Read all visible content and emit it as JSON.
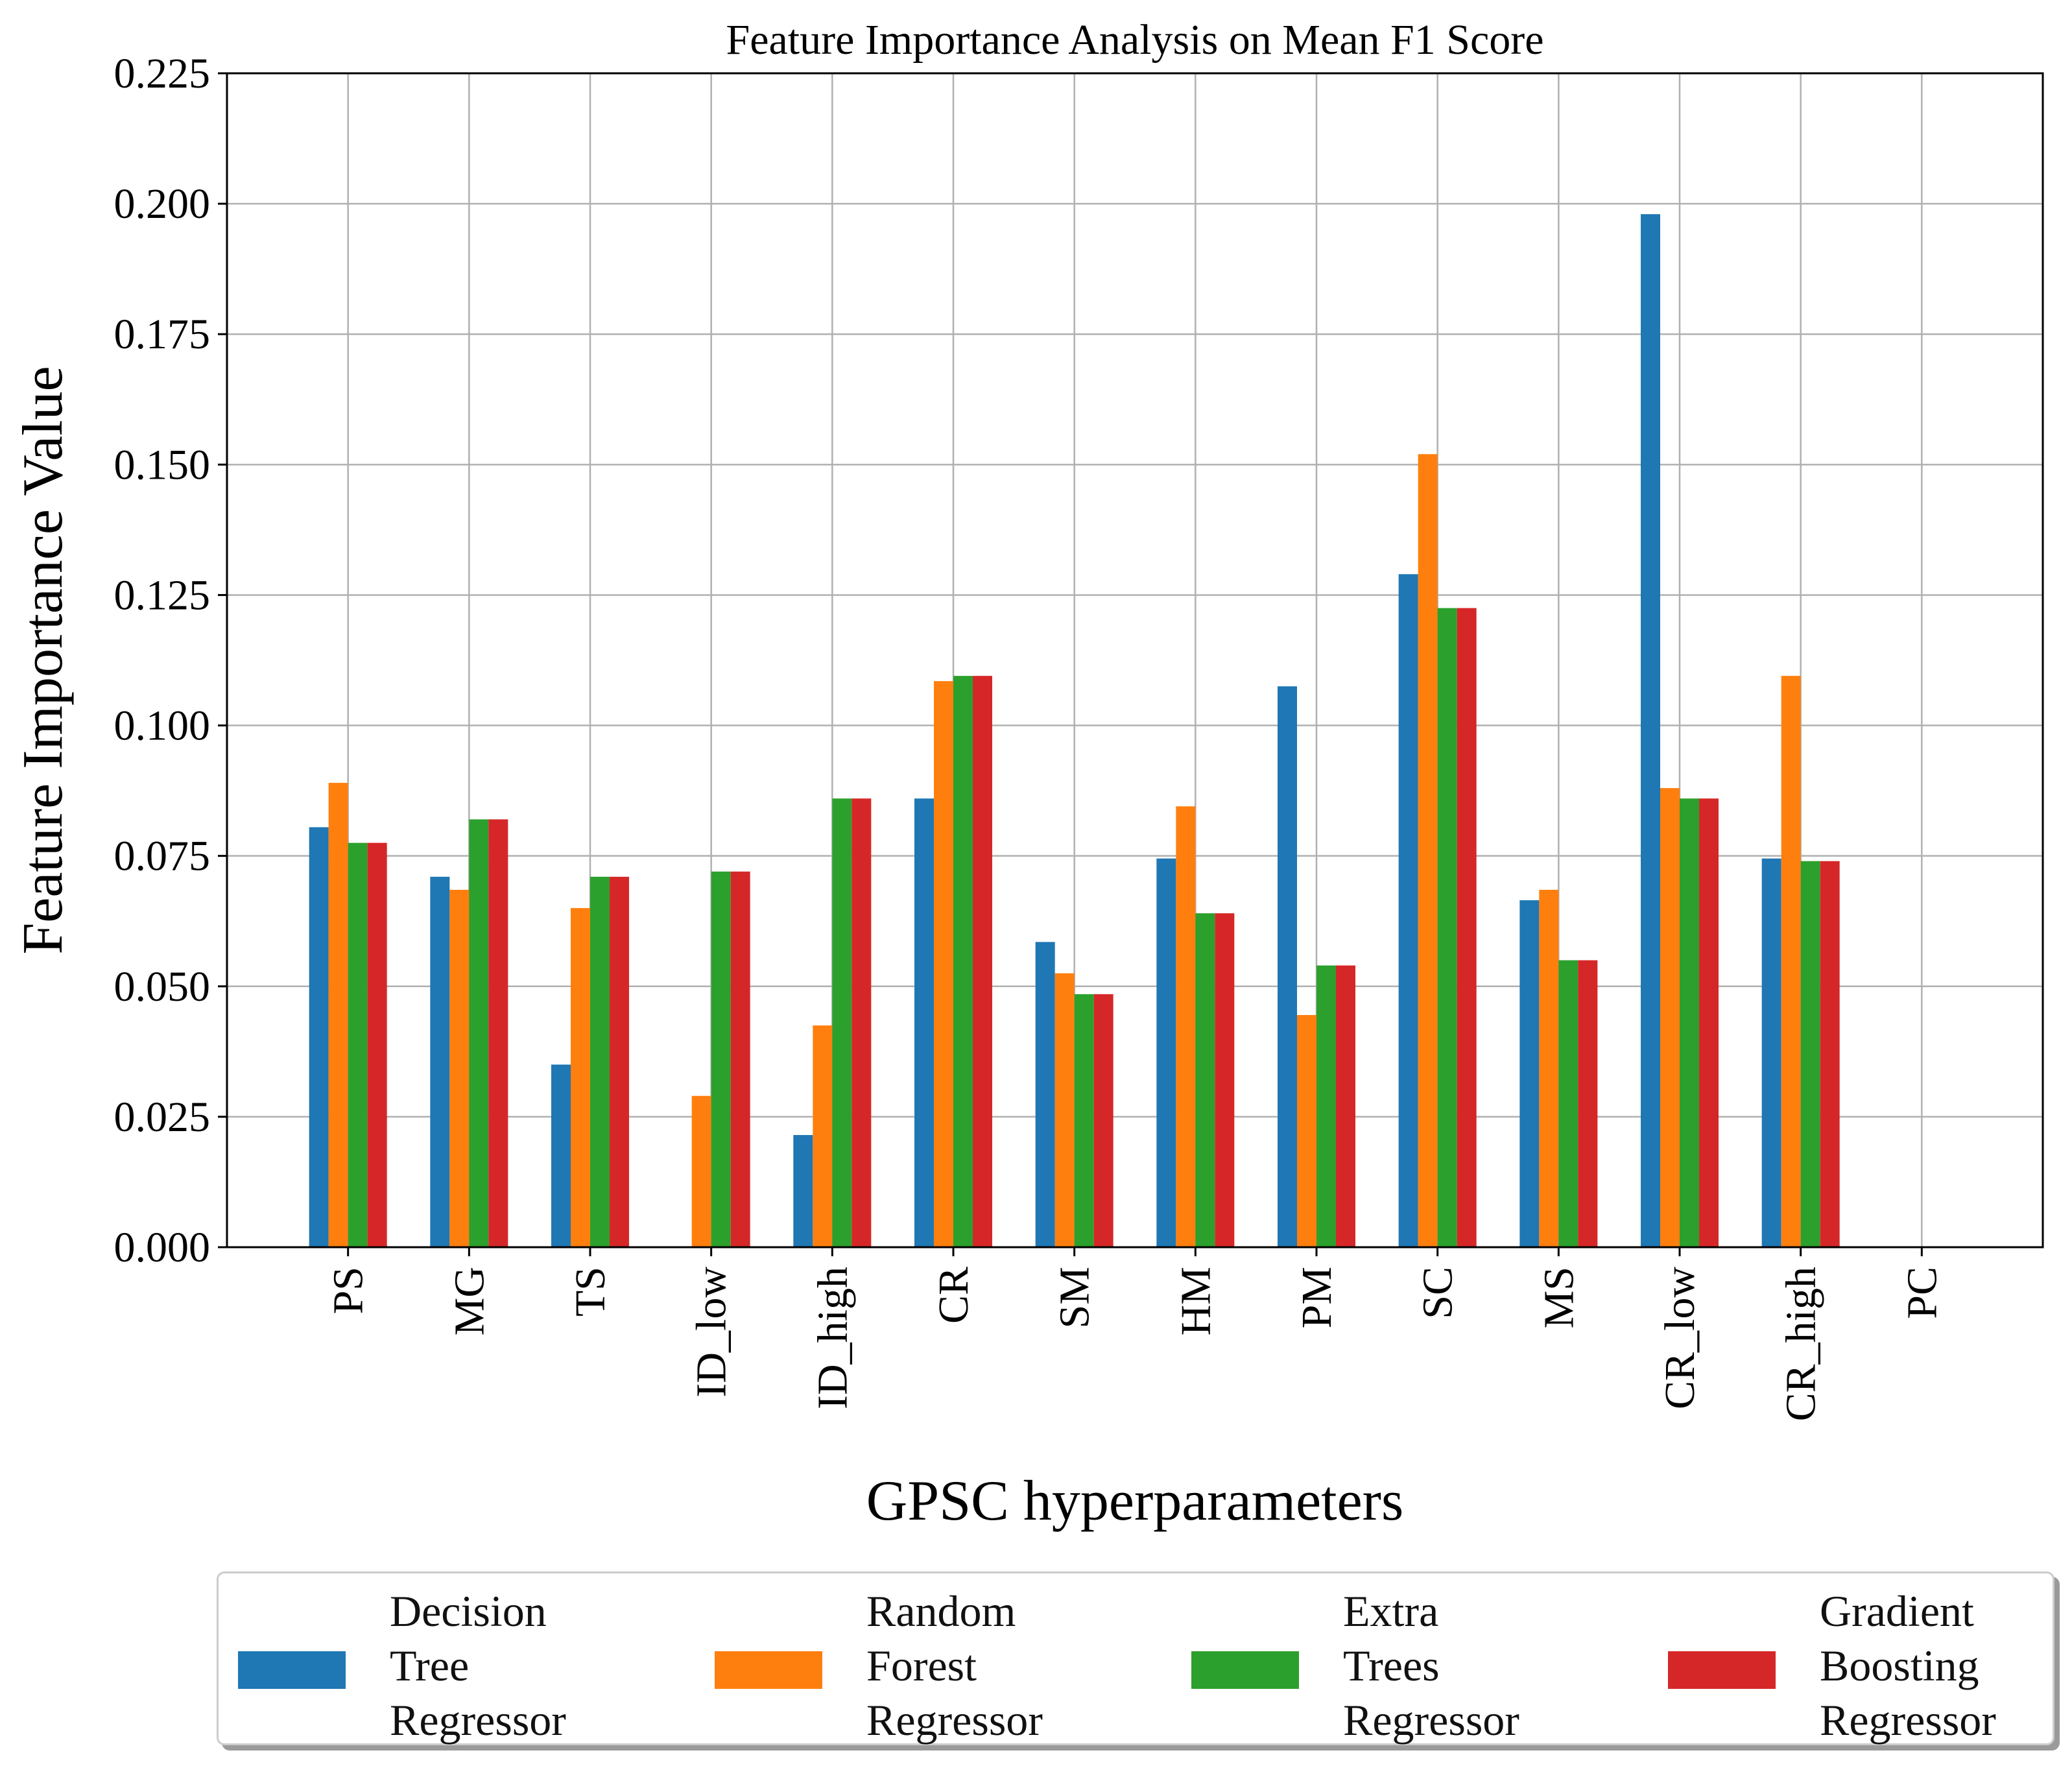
{
  "chart_data": {
    "type": "bar",
    "title": "Feature Importance Analysis on Mean F1 Score",
    "xlabel": "GPSC hyperparameters",
    "ylabel": "Feature Importance Value",
    "ylim": [
      0,
      0.225
    ],
    "yticks": [
      "0.000",
      "0.025",
      "0.050",
      "0.075",
      "0.100",
      "0.125",
      "0.150",
      "0.175",
      "0.200",
      "0.225"
    ],
    "grid": true,
    "legend_position": "bottom",
    "categories": [
      "PS",
      "MG",
      "TS",
      "ID_low",
      "ID_high",
      "CR",
      "SM",
      "HM",
      "PM",
      "SC",
      "MS",
      "CR_low",
      "CR_high",
      "PC"
    ],
    "series": [
      {
        "name": "Decision Tree Regressor",
        "label_lines": [
          "Decision",
          "Tree",
          "Regressor"
        ],
        "color": "#1f77b4",
        "values": [
          0.0805,
          0.071,
          0.035,
          0.0,
          0.0215,
          0.086,
          0.0585,
          0.0745,
          0.1075,
          0.129,
          0.0665,
          0.198,
          0.0745,
          0.0
        ]
      },
      {
        "name": "Random Forest Regressor",
        "label_lines": [
          "Random",
          "Forest",
          "Regressor"
        ],
        "color": "#ff7f0e",
        "values": [
          0.089,
          0.0685,
          0.065,
          0.029,
          0.0425,
          0.1085,
          0.0525,
          0.0845,
          0.0445,
          0.152,
          0.0685,
          0.088,
          0.1095,
          0.0
        ]
      },
      {
        "name": "Extra Trees Regressor",
        "label_lines": [
          "Extra",
          "Trees",
          "Regressor"
        ],
        "color": "#2ca02c",
        "values": [
          0.0775,
          0.082,
          0.071,
          0.072,
          0.086,
          0.1095,
          0.0485,
          0.064,
          0.054,
          0.1225,
          0.055,
          0.086,
          0.074,
          0.0
        ]
      },
      {
        "name": "Gradient Boosting Regressor",
        "label_lines": [
          "Gradient",
          "Boosting",
          "Regressor"
        ],
        "color": "#d62728",
        "values": [
          0.0775,
          0.082,
          0.071,
          0.072,
          0.086,
          0.1095,
          0.0485,
          0.064,
          0.054,
          0.1225,
          0.055,
          0.086,
          0.074,
          0.0
        ]
      }
    ]
  }
}
